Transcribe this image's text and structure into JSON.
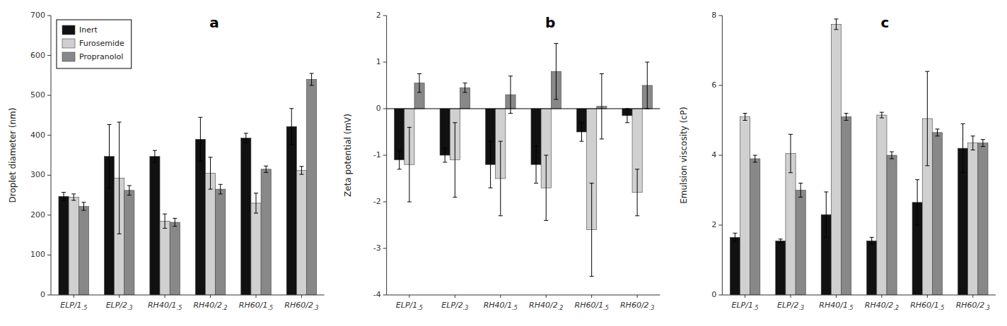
{
  "chart_data": [
    {
      "type": "bar",
      "categories": [
        "ELP/1.5",
        "ELP/2.3",
        "RH40/1.5",
        "RH40/2.2",
        "RH60/1.5",
        "RH60/2.3"
      ],
      "y_label": "Droplet diameter (nm)",
      "annotations": [
        "a"
      ],
      "ylim": [
        0,
        700
      ],
      "yticks": [
        0,
        100,
        200,
        300,
        400,
        500,
        600,
        700
      ],
      "grid": false,
      "legend": "upper-left",
      "series": [
        {
          "name": "Inert",
          "color": "#111111",
          "values": [
            247,
            347,
            347,
            390,
            393,
            422
          ],
          "errors": [
            10,
            80,
            15,
            55,
            12,
            45
          ]
        },
        {
          "name": "Furosemide",
          "color": "#d0d0d0",
          "values": [
            245,
            293,
            185,
            305,
            230,
            312
          ],
          "errors": [
            8,
            140,
            18,
            40,
            25,
            10
          ]
        },
        {
          "name": "Propranolol",
          "color": "#888888",
          "values": [
            222,
            262,
            182,
            265,
            315,
            540
          ],
          "errors": [
            10,
            12,
            10,
            12,
            8,
            15
          ]
        }
      ]
    },
    {
      "type": "bar",
      "categories": [
        "ELP/1.5",
        "ELP/2.3",
        "RH40/1.5",
        "RH40/2.2",
        "RH60/1.5",
        "RH60/2.3"
      ],
      "y_label": "Zeta potential (mV)",
      "annotations": [
        "b"
      ],
      "ylim": [
        -4,
        2
      ],
      "yticks": [
        -4,
        -3,
        -2,
        -1,
        0,
        1,
        2
      ],
      "grid": false,
      "series": [
        {
          "name": "Inert",
          "color": "#111111",
          "values": [
            -1.1,
            -1.0,
            -1.2,
            -1.2,
            -0.5,
            -0.15
          ],
          "errors": [
            0.2,
            0.15,
            0.5,
            0.4,
            0.2,
            0.15
          ]
        },
        {
          "name": "Furosemide",
          "color": "#d0d0d0",
          "values": [
            -1.2,
            -1.1,
            -1.5,
            -1.7,
            -2.6,
            -1.8
          ],
          "errors": [
            0.8,
            0.8,
            0.8,
            0.7,
            1.0,
            0.5
          ]
        },
        {
          "name": "Propranolol",
          "color": "#888888",
          "values": [
            0.55,
            0.45,
            0.3,
            0.8,
            0.05,
            0.5
          ],
          "errors": [
            0.2,
            0.1,
            0.4,
            0.6,
            0.7,
            0.5
          ]
        }
      ]
    },
    {
      "type": "bar",
      "categories": [
        "ELP/1.5",
        "ELP/2.3",
        "RH40/1.5",
        "RH40/2.2",
        "RH60/1.5",
        "RH60/2.3"
      ],
      "y_label": "Emulsion viscosity (cP)",
      "annotations": [
        "c"
      ],
      "ylim": [
        0,
        8
      ],
      "yticks": [
        0,
        2,
        4,
        6,
        8
      ],
      "grid": false,
      "series": [
        {
          "name": "Inert",
          "color": "#111111",
          "values": [
            1.65,
            1.55,
            2.3,
            1.55,
            2.65,
            4.2
          ],
          "errors": [
            0.12,
            0.05,
            0.65,
            0.1,
            0.65,
            0.7
          ]
        },
        {
          "name": "Furosemide",
          "color": "#d0d0d0",
          "values": [
            5.1,
            4.05,
            7.75,
            5.15,
            5.05,
            4.35
          ],
          "errors": [
            0.1,
            0.55,
            0.15,
            0.08,
            1.35,
            0.2
          ]
        },
        {
          "name": "Propranolol",
          "color": "#888888",
          "values": [
            3.9,
            3.0,
            5.1,
            4.0,
            4.65,
            4.35
          ],
          "errors": [
            0.1,
            0.2,
            0.1,
            0.1,
            0.1,
            0.1
          ]
        }
      ]
    }
  ]
}
